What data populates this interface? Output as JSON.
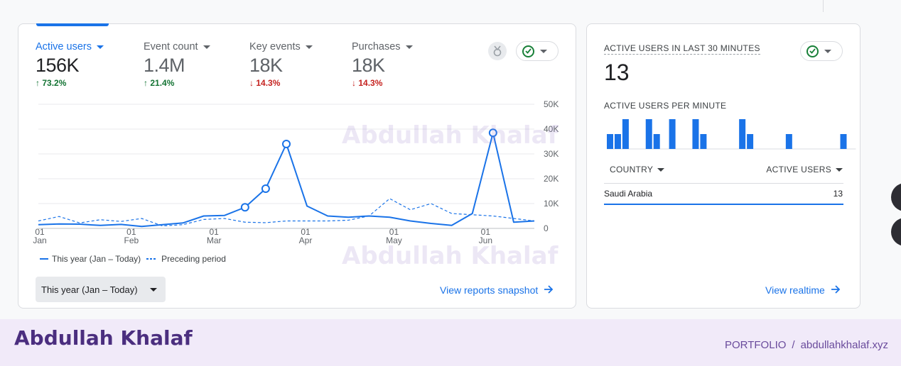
{
  "metrics": [
    {
      "label": "Active users",
      "value": "156K",
      "change": "73.2%",
      "direction": "up"
    },
    {
      "label": "Event count",
      "value": "1.4M",
      "change": "21.4%",
      "direction": "up"
    },
    {
      "label": "Key events",
      "value": "18K",
      "change": "14.3%",
      "direction": "down"
    },
    {
      "label": "Purchases",
      "value": "18K",
      "change": "14.3%",
      "direction": "down"
    }
  ],
  "chart_data": {
    "type": "line",
    "x": [
      "Jan 1",
      "Jan 8",
      "Jan 15",
      "Jan 22",
      "Jan 29",
      "Feb 5",
      "Feb 12",
      "Feb 19",
      "Feb 26",
      "Mar 5",
      "Mar 12",
      "Mar 19",
      "Mar 26",
      "Apr 2",
      "Apr 9",
      "Apr 16",
      "Apr 23",
      "Apr 30",
      "May 7",
      "May 14",
      "May 21",
      "May 28",
      "Jun 4",
      "Jun 11",
      "Jun 18"
    ],
    "x_tick_labels": [
      {
        "day": "01",
        "month": "Jan"
      },
      {
        "day": "01",
        "month": "Feb"
      },
      {
        "day": "01",
        "month": "Mar"
      },
      {
        "day": "01",
        "month": "Apr"
      },
      {
        "day": "01",
        "month": "May"
      },
      {
        "day": "01",
        "month": "Jun"
      }
    ],
    "y_tick_labels": [
      "50K",
      "40K",
      "30K",
      "20K",
      "10K",
      "0"
    ],
    "ylim": [
      0,
      50000
    ],
    "series": [
      {
        "name": "This year (Jan – Today)",
        "style": "solid",
        "values": [
          1500,
          1800,
          1700,
          1200,
          1600,
          800,
          1500,
          2200,
          5000,
          5200,
          8500,
          16000,
          34000,
          9000,
          5000,
          4500,
          5000,
          4500,
          3000,
          2000,
          1200,
          6000,
          38500,
          2500,
          3000
        ]
      },
      {
        "name": "Preceding period",
        "style": "dashed",
        "values": [
          3000,
          4800,
          2200,
          3500,
          2800,
          4000,
          1000,
          1500,
          3600,
          4000,
          2500,
          2300,
          3000,
          3000,
          3000,
          3300,
          5000,
          12000,
          7500,
          10000,
          6000,
          5500,
          5000,
          4000,
          3000
        ]
      }
    ],
    "markers_on_series": "This year (Jan – Today)",
    "marker_indices": [
      10,
      11,
      12,
      22
    ],
    "grid": true,
    "legend": "bottom-left"
  },
  "period_select": "This year (Jan – Today)",
  "view_snapshot_label": "View reports snapshot",
  "realtime": {
    "title": "ACTIVE USERS IN LAST 30 MINUTES",
    "value": "13",
    "subtitle": "ACTIVE USERS PER MINUTE",
    "per_minute": [
      1,
      1,
      2,
      0,
      0,
      2,
      1,
      0,
      2,
      0,
      0,
      2,
      1,
      0,
      0,
      0,
      0,
      2,
      1,
      0,
      0,
      0,
      0,
      1,
      0,
      0,
      0,
      0,
      0,
      0,
      1,
      0
    ],
    "col_country": "COUNTRY",
    "col_users": "ACTIVE USERS",
    "rows": [
      {
        "country": "Saudi Arabia",
        "users": "13"
      }
    ],
    "view_realtime_label": "View realtime"
  },
  "watermark": "Abdullah Khalaf",
  "footer": {
    "brand": "Abdullah Khalaf",
    "nav_portfolio": "PORTFOLIO",
    "nav_sep": "/",
    "nav_site": "abdullahkhalaf.xyz"
  },
  "colors": {
    "accent": "#1a73e8",
    "up": "#137333",
    "down": "#c5221f",
    "footer_bg": "#f1eaf9",
    "footer_brand": "#4b2e7f"
  },
  "icons": [
    "arrow-up-icon",
    "arrow-down-icon",
    "insights-badge-icon",
    "check-circle-icon",
    "chevron-down-icon",
    "arrow-right-icon"
  ]
}
